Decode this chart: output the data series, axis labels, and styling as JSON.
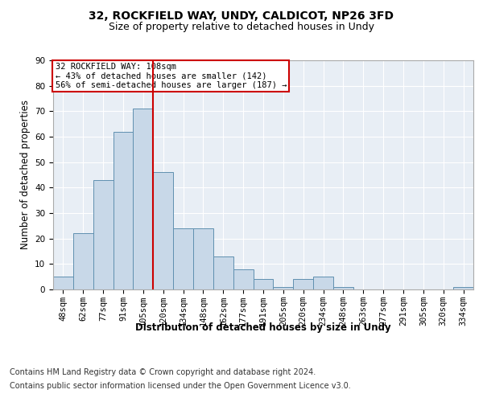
{
  "title_line1": "32, ROCKFIELD WAY, UNDY, CALDICOT, NP26 3FD",
  "title_line2": "Size of property relative to detached houses in Undy",
  "xlabel": "Distribution of detached houses by size in Undy",
  "ylabel": "Number of detached properties",
  "categories": [
    "48sqm",
    "62sqm",
    "77sqm",
    "91sqm",
    "105sqm",
    "120sqm",
    "134sqm",
    "148sqm",
    "162sqm",
    "177sqm",
    "191sqm",
    "205sqm",
    "220sqm",
    "234sqm",
    "248sqm",
    "263sqm",
    "277sqm",
    "291sqm",
    "305sqm",
    "320sqm",
    "334sqm"
  ],
  "values": [
    5,
    22,
    43,
    62,
    71,
    46,
    24,
    24,
    13,
    8,
    4,
    1,
    4,
    5,
    1,
    0,
    0,
    0,
    0,
    0,
    1
  ],
  "bar_color": "#c8d8e8",
  "bar_edge_color": "#6090b0",
  "vline_x": 4.5,
  "vline_color": "#cc0000",
  "annotation_text": "32 ROCKFIELD WAY: 108sqm\n← 43% of detached houses are smaller (142)\n56% of semi-detached houses are larger (187) →",
  "annotation_box_color": "white",
  "annotation_box_edge_color": "#cc0000",
  "ylim": [
    0,
    90
  ],
  "yticks": [
    0,
    10,
    20,
    30,
    40,
    50,
    60,
    70,
    80,
    90
  ],
  "footer_line1": "Contains HM Land Registry data © Crown copyright and database right 2024.",
  "footer_line2": "Contains public sector information licensed under the Open Government Licence v3.0.",
  "bg_color": "#e8eef5",
  "fig_bg_color": "#ffffff",
  "title_fontsize": 10,
  "subtitle_fontsize": 9,
  "axis_label_fontsize": 8.5,
  "tick_fontsize": 7.5,
  "footer_fontsize": 7,
  "annot_fontsize": 7.5
}
